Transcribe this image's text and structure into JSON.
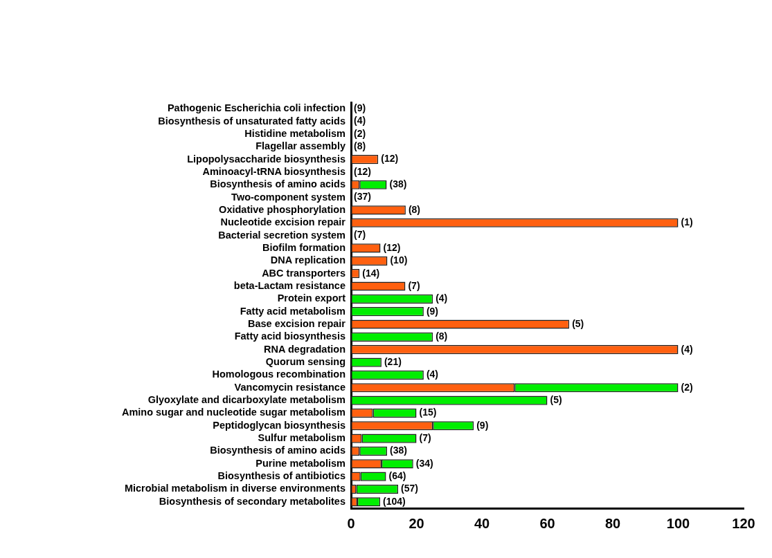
{
  "chart_data": {
    "type": "bar",
    "orientation": "horizontal",
    "stacked": true,
    "categories": [
      "Pathogenic Escherichia coli infection",
      "Biosynthesis of unsaturated fatty acids",
      "Histidine metabolism",
      "Flagellar assembly",
      "Lipopolysaccharide biosynthesis",
      "Aminoacyl-tRNA biosynthesis",
      "Biosynthesis of amino acids",
      "Two-component system",
      "Oxidative phosphorylation",
      "Nucleotide excision repair",
      "Bacterial secretion system",
      "Biofilm formation",
      "DNA replication",
      "ABC transporters",
      "beta-Lactam resistance",
      "Protein export",
      "Fatty acid metabolism",
      "Base excision repair",
      "Fatty acid biosynthesis",
      "RNA degradation",
      "Quorum sensing",
      "Homologous recombination",
      "Vancomycin resistance",
      "Glyoxylate and dicarboxylate metabolism",
      "Amino sugar and nucleotide sugar metabolism",
      "Peptidoglycan biosynthesis",
      "Sulfur metabolism",
      "Biosynthesis of amino acids",
      "Purine metabolism",
      "Biosynthesis of antibiotics",
      "Microbial metabolism in diverse environments",
      "Biosynthesis of secondary metabolites"
    ],
    "series": [
      {
        "color": "#ff6010",
        "values": [
          0,
          0,
          0,
          0,
          8.3,
          0,
          2.6,
          0,
          16.7,
          100,
          0,
          9,
          11.1,
          2.6,
          16.6,
          0,
          0,
          66.7,
          0,
          100,
          0,
          0,
          50,
          0,
          6.7,
          25,
          3.3,
          2.6,
          9.3,
          2.9,
          1.6,
          1.9
        ]
      },
      {
        "color": "#00ee00",
        "values": [
          0,
          0,
          0,
          0,
          0,
          0,
          8.3,
          0,
          0,
          0,
          0,
          0,
          0,
          0,
          0,
          25,
          22.2,
          0,
          25,
          0,
          9.3,
          22.2,
          50,
          60,
          13.3,
          12.5,
          16.7,
          8.4,
          9.7,
          7.8,
          12.8,
          7
        ]
      }
    ],
    "value_labels": [
      "(9)",
      "(4)",
      "(2)",
      "(8)",
      "(12)",
      "(12)",
      "(38)",
      "(37)",
      "(8)",
      "(1)",
      "(7)",
      "(12)",
      "(10)",
      "(14)",
      "(7)",
      "(4)",
      "(9)",
      "(5)",
      "(8)",
      "(4)",
      "(21)",
      "(4)",
      "(2)",
      "(5)",
      "(15)",
      "(9)",
      "(7)",
      "(38)",
      "(34)",
      "(64)",
      "(57)",
      "(104)"
    ],
    "xlim": [
      0,
      120
    ],
    "xticks": [
      0,
      20,
      40,
      60,
      80,
      100,
      120
    ],
    "grid": false,
    "legend": false
  }
}
